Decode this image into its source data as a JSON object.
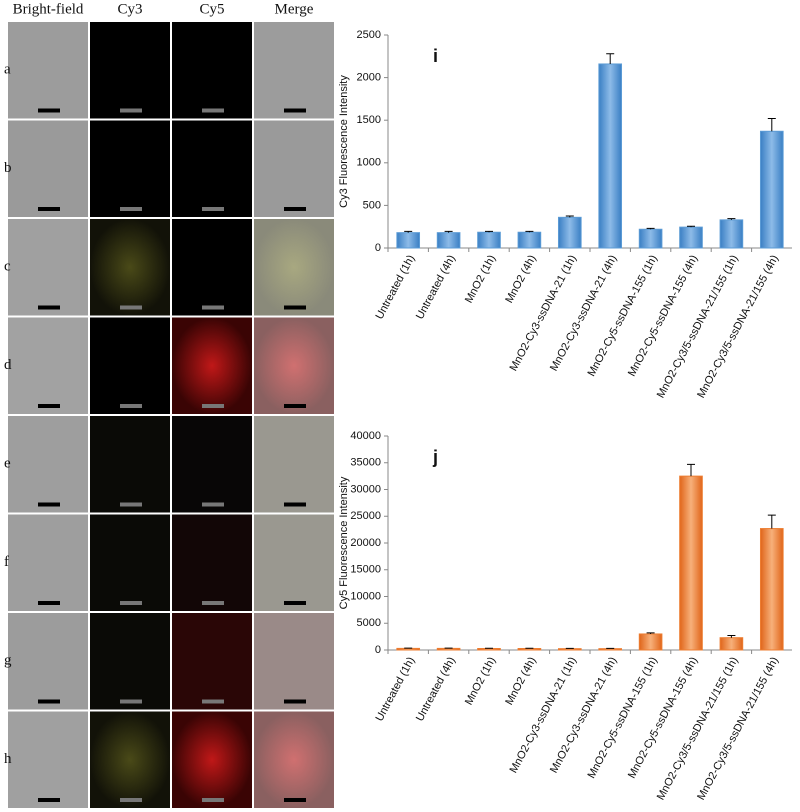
{
  "panels": {
    "columns": [
      "Bright-field",
      "Cy3",
      "Cy5",
      "Merge"
    ],
    "rows": [
      "a",
      "b",
      "c",
      "d",
      "e",
      "f",
      "g",
      "h"
    ]
  },
  "chart_data": [
    {
      "type": "bar",
      "annotation": "i",
      "y_label": "Cy3 Fluorescence Intensity",
      "color": "#5b9bd5",
      "categories": [
        "Untreated (1h)",
        "Untreated (4h)",
        "MnO2 (1h)",
        "MnO2 (4h)",
        "MnO2-Cy3-ssDNA-21 (1h)",
        "MnO2-Cy3-ssDNA-21 (4h)",
        "MnO2-Cy5-ssDNA-155 (1h)",
        "MnO2-Cy5-ssDNA-155 (4h)",
        "MnO2-Cy3/5-ssDNA-21/155 (1h)",
        "MnO2-Cy3/5-ssDNA-21/155 (4h)"
      ],
      "values": [
        180,
        180,
        185,
        185,
        360,
        2160,
        220,
        245,
        330,
        1370
      ],
      "errors": [
        15,
        15,
        10,
        10,
        15,
        120,
        10,
        10,
        15,
        150
      ],
      "ylim": [
        0,
        2500
      ],
      "yticks": [
        0,
        500,
        1000,
        1500,
        2000,
        2500
      ]
    },
    {
      "type": "bar",
      "annotation": "j",
      "y_label": "Cy5 Fluorescence Intensity",
      "color": "#ed7d31",
      "categories": [
        "Untreated (1h)",
        "Untreated (4h)",
        "MnO2 (1h)",
        "MnO2 (4h)",
        "MnO2-Cy3-ssDNA-21 (1h)",
        "MnO2-Cy3-ssDNA-21 (4h)",
        "MnO2-Cy5-ssDNA-155 (1h)",
        "MnO2-Cy5-ssDNA-155 (4h)",
        "MnO2-Cy3/5-ssDNA-21/155 (1h)",
        "MnO2-Cy3/5-ssDNA-21/155 (4h)"
      ],
      "values": [
        300,
        300,
        280,
        280,
        250,
        250,
        3000,
        32500,
        2300,
        22700
      ],
      "errors": [
        50,
        50,
        50,
        50,
        50,
        50,
        200,
        2200,
        400,
        2500
      ],
      "ylim": [
        0,
        40000
      ],
      "yticks": [
        0,
        5000,
        10000,
        15000,
        20000,
        25000,
        30000,
        35000,
        40000
      ]
    }
  ]
}
